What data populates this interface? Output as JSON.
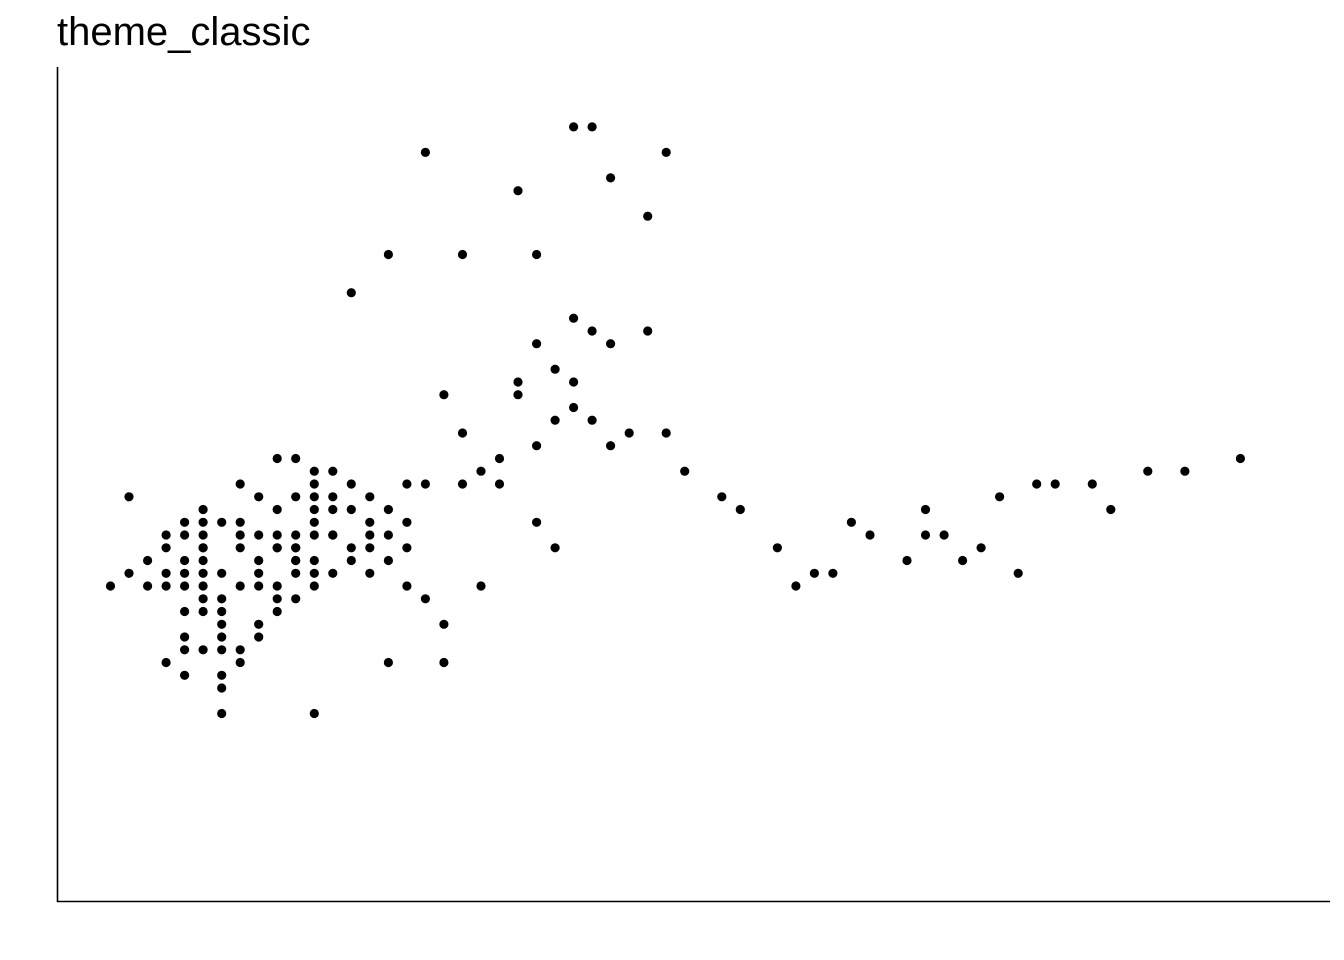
{
  "chart_data": {
    "type": "scatter",
    "title": "theme_classic",
    "xlabel": "",
    "ylabel": "",
    "xlim": [
      0,
      63
    ],
    "ylim": [
      0,
      60
    ],
    "axis_lines": "left-bottom",
    "grid": false,
    "legend": "none",
    "colors": {
      "point": "#000000",
      "axis": "#000000",
      "background": "#ffffff"
    },
    "series": [
      {
        "points": [
          [
            13,
            30
          ],
          [
            12,
            28
          ],
          [
            11,
            30
          ],
          [
            11,
            27
          ],
          [
            10,
            25
          ],
          [
            11,
            28
          ],
          [
            10,
            26
          ],
          [
            11,
            26
          ],
          [
            10,
            24
          ],
          [
            14,
            29
          ],
          [
            13,
            25
          ],
          [
            12,
            26
          ],
          [
            11,
            23
          ],
          [
            9,
            20
          ],
          [
            10,
            24
          ],
          [
            8,
            23
          ],
          [
            9,
            22
          ],
          [
            10,
            23
          ],
          [
            8,
            26
          ],
          [
            9,
            25
          ],
          [
            9,
            26
          ],
          [
            10,
            25
          ],
          [
            12,
            26
          ],
          [
            11,
            24
          ],
          [
            13,
            28
          ],
          [
            14,
            27
          ],
          [
            15,
            28
          ],
          [
            16,
            27
          ],
          [
            19,
            30
          ],
          [
            20,
            31
          ],
          [
            21,
            30
          ],
          [
            17,
            21
          ],
          [
            18,
            19
          ],
          [
            21,
            32
          ],
          [
            23,
            33
          ],
          [
            24,
            35
          ],
          [
            25,
            36
          ],
          [
            26,
            35
          ],
          [
            27,
            33
          ],
          [
            28,
            34
          ],
          [
            30,
            34
          ],
          [
            31,
            31
          ],
          [
            33,
            29
          ],
          [
            34,
            28
          ],
          [
            36,
            25
          ],
          [
            37,
            22
          ],
          [
            38,
            23
          ],
          [
            39,
            23
          ],
          [
            40,
            27
          ],
          [
            41,
            26
          ],
          [
            43,
            24
          ],
          [
            44,
            28
          ],
          [
            44,
            26
          ],
          [
            45,
            26
          ],
          [
            46,
            24
          ],
          [
            47,
            25
          ],
          [
            48,
            29
          ],
          [
            49,
            23
          ],
          [
            50,
            30
          ],
          [
            51,
            30
          ],
          [
            53,
            30
          ],
          [
            54,
            28
          ],
          [
            56,
            31
          ],
          [
            58,
            31
          ],
          [
            61,
            32
          ],
          [
            22,
            37
          ],
          [
            23,
            41
          ],
          [
            25,
            43
          ],
          [
            27,
            41
          ],
          [
            29,
            51
          ],
          [
            30,
            56
          ],
          [
            26,
            58
          ],
          [
            27,
            54
          ],
          [
            25,
            58
          ],
          [
            22,
            53
          ],
          [
            17,
            56
          ],
          [
            13,
            45
          ],
          [
            15,
            48
          ],
          [
            19,
            48
          ],
          [
            23,
            48
          ],
          [
            29,
            42
          ],
          [
            26,
            42
          ],
          [
            24,
            39
          ],
          [
            25,
            38
          ],
          [
            22,
            38
          ],
          [
            18,
            37
          ],
          [
            19,
            34
          ],
          [
            17,
            30
          ],
          [
            16,
            30
          ],
          [
            15,
            26
          ],
          [
            16,
            25
          ],
          [
            14,
            25
          ],
          [
            15,
            24
          ],
          [
            14,
            23
          ],
          [
            13,
            24
          ],
          [
            12,
            23
          ],
          [
            11,
            22
          ],
          [
            10,
            21
          ],
          [
            9,
            21
          ],
          [
            8,
            19
          ],
          [
            8,
            18
          ],
          [
            7,
            17
          ],
          [
            7,
            16
          ],
          [
            6,
            20
          ],
          [
            6,
            19
          ],
          [
            6,
            17
          ],
          [
            6,
            18
          ],
          [
            5,
            20
          ],
          [
            4,
            18
          ],
          [
            4,
            15
          ],
          [
            3,
            22
          ],
          [
            3,
            25
          ],
          [
            2,
            24
          ],
          [
            1,
            29
          ],
          [
            1,
            23
          ],
          [
            0,
            22
          ],
          [
            5,
            27
          ],
          [
            5,
            28
          ],
          [
            6,
            27
          ],
          [
            7,
            30
          ],
          [
            8,
            29
          ],
          [
            9,
            28
          ],
          [
            10,
            29
          ],
          [
            11,
            29
          ],
          [
            12,
            29
          ],
          [
            11,
            31
          ],
          [
            10,
            32
          ],
          [
            9,
            32
          ],
          [
            7,
            26
          ],
          [
            7,
            25
          ],
          [
            7,
            27
          ],
          [
            8,
            24
          ],
          [
            9,
            25
          ],
          [
            8,
            22
          ],
          [
            12,
            31
          ],
          [
            14,
            26
          ],
          [
            16,
            22
          ],
          [
            20,
            22
          ],
          [
            23,
            27
          ],
          [
            24,
            25
          ],
          [
            18,
            16
          ],
          [
            15,
            16
          ],
          [
            11,
            12
          ],
          [
            6,
            12
          ],
          [
            6,
            15
          ],
          [
            6,
            14
          ],
          [
            5,
            17
          ],
          [
            4,
            17
          ],
          [
            3,
            26
          ],
          [
            3,
            23
          ],
          [
            2,
            22
          ],
          [
            4,
            22
          ],
          [
            5,
            24
          ],
          [
            4,
            24
          ],
          [
            4,
            26
          ],
          [
            4,
            27
          ],
          [
            5,
            26
          ],
          [
            5,
            25
          ],
          [
            4,
            23
          ],
          [
            3,
            16
          ],
          [
            7,
            22
          ],
          [
            6,
            21
          ],
          [
            5,
            21
          ],
          [
            4,
            20
          ],
          [
            5,
            22
          ],
          [
            5,
            23
          ],
          [
            5,
            25
          ],
          [
            6,
            23
          ]
        ]
      }
    ]
  }
}
